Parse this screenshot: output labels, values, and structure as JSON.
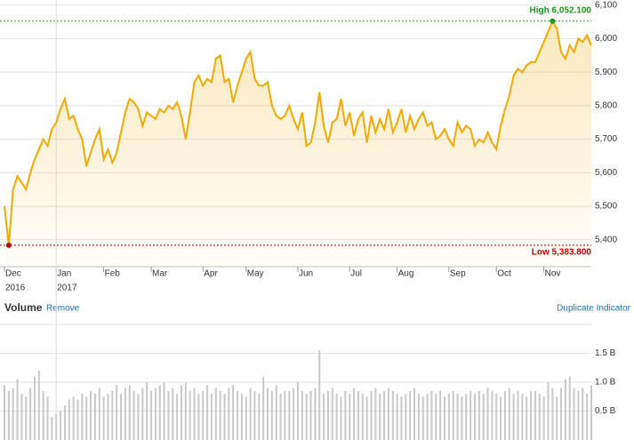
{
  "chart_data": [
    {
      "type": "line",
      "color": "#f5a800",
      "series": [
        {
          "values": [
            5500,
            5383.8,
            5550,
            5590,
            5570,
            5550,
            5600,
            5640,
            5670,
            5700,
            5680,
            5730,
            5750,
            5790,
            5820,
            5760,
            5770,
            5730,
            5700,
            5620,
            5660,
            5700,
            5730,
            5640,
            5670,
            5630,
            5660,
            5720,
            5780,
            5820,
            5810,
            5790,
            5740,
            5780,
            5770,
            5760,
            5790,
            5780,
            5800,
            5790,
            5810,
            5770,
            5700,
            5780,
            5870,
            5890,
            5860,
            5880,
            5870,
            5940,
            5950,
            5870,
            5880,
            5810,
            5860,
            5900,
            5940,
            5960,
            5880,
            5860,
            5860,
            5870,
            5800,
            5770,
            5760,
            5770,
            5800,
            5760,
            5730,
            5780,
            5680,
            5690,
            5750,
            5840,
            5740,
            5690,
            5750,
            5760,
            5820,
            5740,
            5780,
            5710,
            5760,
            5780,
            5690,
            5770,
            5720,
            5760,
            5730,
            5790,
            5720,
            5750,
            5790,
            5720,
            5770,
            5730,
            5760,
            5780,
            5740,
            5750,
            5700,
            5710,
            5730,
            5700,
            5680,
            5750,
            5720,
            5740,
            5730,
            5680,
            5700,
            5690,
            5720,
            5690,
            5670,
            5740,
            5790,
            5830,
            5890,
            5910,
            5900,
            5920,
            5930,
            5930,
            5960,
            5990,
            6020,
            6052.1,
            6030,
            5960,
            5940,
            5980,
            5960,
            6000,
            5990,
            6010,
            5980
          ]
        }
      ],
      "ylim": [
        5320,
        6115
      ],
      "yticks": [
        {
          "value": 5400,
          "label": "5,400"
        },
        {
          "value": 5500,
          "label": "5,500"
        },
        {
          "value": 5600,
          "label": "5,600"
        },
        {
          "value": 5700,
          "label": "5,700"
        },
        {
          "value": 5800,
          "label": "5,800"
        },
        {
          "value": 5900,
          "label": "5,900"
        },
        {
          "value": 6000,
          "label": "6,000"
        },
        {
          "value": 6100,
          "label": "6,100"
        }
      ],
      "xticks": [
        {
          "value": 0,
          "label": "Dec"
        },
        {
          "value": 12,
          "label": "Jan"
        },
        {
          "value": 23,
          "label": "Feb"
        },
        {
          "value": 34,
          "label": "Mar"
        },
        {
          "value": 46,
          "label": "Apr"
        },
        {
          "value": 56,
          "label": "May"
        },
        {
          "value": 68,
          "label": "Jun"
        },
        {
          "value": 80,
          "label": "Jul"
        },
        {
          "value": 91,
          "label": "Aug"
        },
        {
          "value": 103,
          "label": "Sep"
        },
        {
          "value": 114,
          "label": "Oct"
        },
        {
          "value": 125,
          "label": "Nov"
        }
      ],
      "year_labels": [
        {
          "value": 0,
          "label": "2016"
        },
        {
          "value": 12,
          "label": "2017"
        }
      ],
      "high": {
        "value": 6052.1,
        "label": "High 6,052.100",
        "index": 127
      },
      "low": {
        "value": 5383.8,
        "label": "Low 5,383.800",
        "index": 1
      },
      "grid": true
    },
    {
      "type": "bar",
      "title": "Volume",
      "actions": [
        "Remove",
        "Duplicate Indicator"
      ],
      "color": "#c8c8c8",
      "values": [
        0.95,
        0.85,
        0.9,
        1.05,
        0.8,
        0.75,
        0.9,
        1.1,
        1.2,
        0.85,
        0.75,
        0.4,
        0.45,
        0.5,
        0.6,
        0.7,
        0.75,
        0.7,
        0.8,
        0.75,
        0.85,
        0.8,
        0.9,
        0.75,
        0.8,
        0.85,
        0.95,
        0.8,
        0.9,
        0.95,
        0.85,
        0.8,
        0.9,
        1.0,
        0.85,
        0.9,
        0.95,
        1.0,
        0.85,
        0.9,
        0.8,
        0.95,
        1.0,
        0.85,
        0.9,
        0.8,
        0.85,
        0.95,
        0.8,
        0.9,
        0.85,
        0.8,
        0.9,
        0.95,
        0.85,
        0.8,
        0.75,
        0.9,
        0.85,
        0.8,
        1.1,
        0.9,
        0.85,
        0.95,
        0.8,
        0.85,
        0.85,
        0.9,
        1.0,
        0.85,
        0.8,
        0.85,
        0.9,
        1.55,
        0.8,
        0.85,
        0.9,
        0.8,
        0.75,
        0.85,
        0.8,
        0.9,
        0.85,
        0.8,
        0.75,
        0.85,
        0.9,
        0.8,
        0.85,
        0.9,
        0.85,
        0.8,
        0.75,
        0.8,
        0.85,
        0.9,
        0.8,
        0.75,
        0.8,
        0.85,
        0.8,
        0.85,
        0.75,
        0.8,
        0.85,
        0.8,
        0.75,
        0.8,
        0.85,
        0.8,
        0.85,
        0.8,
        0.9,
        0.85,
        0.8,
        0.75,
        0.85,
        0.9,
        0.8,
        0.85,
        0.8,
        0.75,
        0.85,
        0.85,
        0.8,
        0.75,
        1.0,
        0.9,
        0.75,
        0.9,
        1.05,
        1.1,
        0.9,
        0.85,
        0.9,
        0.8,
        0.95
      ],
      "ylim": [
        0,
        2
      ],
      "yticks": [
        {
          "value": 0.5,
          "label": "0.5 B"
        },
        {
          "value": 1.0,
          "label": "1.0 B"
        },
        {
          "value": 1.5,
          "label": "1.5 B"
        }
      ],
      "grid": true
    }
  ]
}
